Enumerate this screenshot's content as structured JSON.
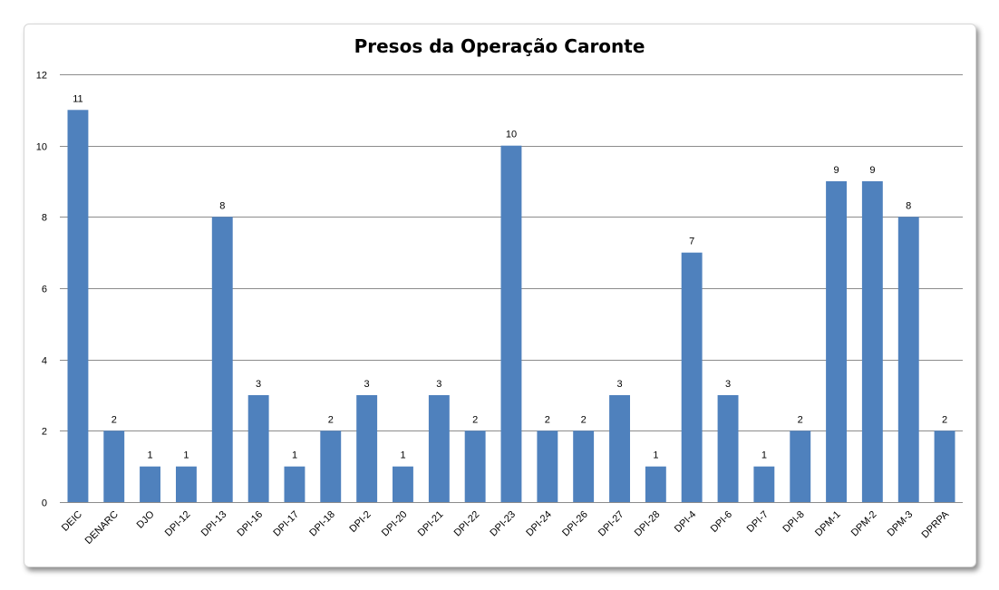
{
  "chart_data": {
    "type": "bar",
    "title": "Presos da Operação Caronte",
    "xlabel": "",
    "ylabel": "",
    "ylim": [
      0,
      12
    ],
    "yticks": [
      0,
      2,
      4,
      6,
      8,
      10,
      12
    ],
    "grid": true,
    "legend": "none",
    "bar_color": "#4f81bd",
    "categories": [
      "DEIC",
      "DENARC",
      "DJO",
      "DPI-12",
      "DPI-13",
      "DPI-16",
      "DPI-17",
      "DPI-18",
      "DPI-2",
      "DPI-20",
      "DPI-21",
      "DPI-22",
      "DPI-23",
      "DPI-24",
      "DPI-26",
      "DPI-27",
      "DPI-28",
      "DPI-4",
      "DPI-6",
      "DPI-7",
      "DPI-8",
      "DPM-1",
      "DPM-2",
      "DPM-3",
      "DPRPA"
    ],
    "values": [
      11,
      2,
      1,
      1,
      8,
      3,
      1,
      2,
      3,
      1,
      3,
      2,
      10,
      2,
      2,
      3,
      1,
      7,
      3,
      1,
      2,
      9,
      9,
      8,
      2
    ]
  }
}
